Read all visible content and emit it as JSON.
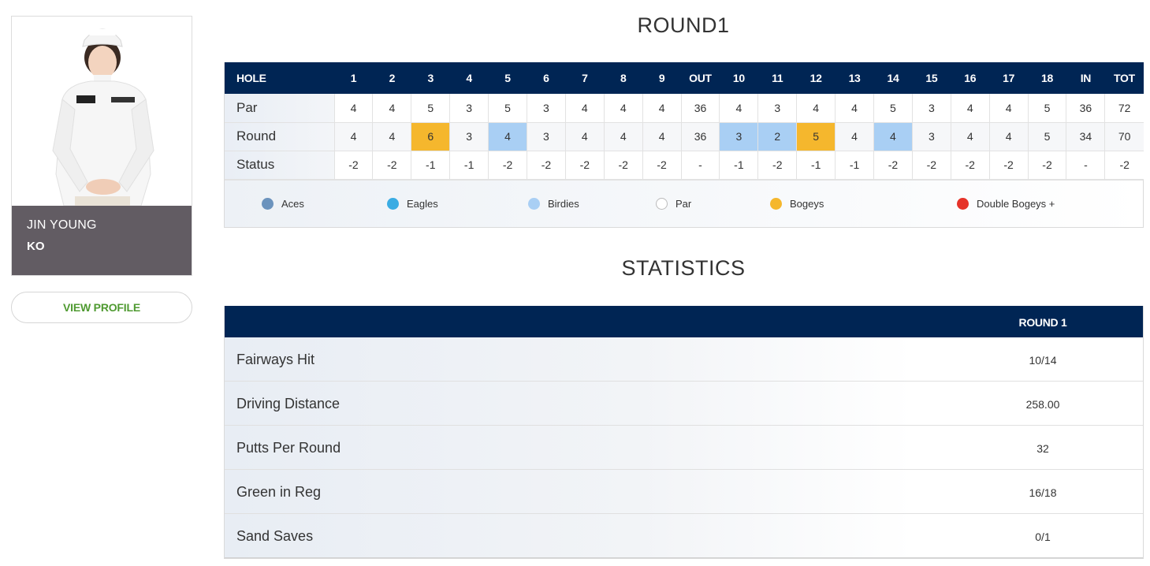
{
  "player": {
    "first_name": "JIN YOUNG",
    "last_name": "KO",
    "view_profile_label": "VIEW PROFILE"
  },
  "round_title": "ROUND1",
  "stats_title": "STATISTICS",
  "scorecard": {
    "header_label": "HOLE",
    "columns": [
      "1",
      "2",
      "3",
      "4",
      "5",
      "6",
      "7",
      "8",
      "9",
      "OUT",
      "10",
      "11",
      "12",
      "13",
      "14",
      "15",
      "16",
      "17",
      "18",
      "IN",
      "TOT"
    ],
    "rows": [
      {
        "label": "Par",
        "values": [
          "4",
          "4",
          "5",
          "3",
          "5",
          "3",
          "4",
          "4",
          "4",
          "36",
          "4",
          "3",
          "4",
          "4",
          "5",
          "3",
          "4",
          "4",
          "5",
          "36",
          "72"
        ],
        "types": [
          "",
          "",
          "",
          "",
          "",
          "",
          "",
          "",
          "",
          "",
          "",
          "",
          "",
          "",
          "",
          "",
          "",
          "",
          "",
          "",
          ""
        ]
      },
      {
        "label": "Round",
        "values": [
          "4",
          "4",
          "6",
          "3",
          "4",
          "3",
          "4",
          "4",
          "4",
          "36",
          "3",
          "2",
          "5",
          "4",
          "4",
          "3",
          "4",
          "4",
          "5",
          "34",
          "70"
        ],
        "types": [
          "",
          "",
          "bogey",
          "",
          "birdie",
          "",
          "",
          "",
          "",
          "",
          "birdie",
          "birdie",
          "bogey",
          "",
          "birdie",
          "",
          "",
          "",
          "",
          "",
          ""
        ]
      },
      {
        "label": "Status",
        "values": [
          "-2",
          "-2",
          "-1",
          "-1",
          "-2",
          "-2",
          "-2",
          "-2",
          "-2",
          "-",
          "-1",
          "-2",
          "-1",
          "-1",
          "-2",
          "-2",
          "-2",
          "-2",
          "-2",
          "-",
          "-2"
        ],
        "types": [
          "",
          "",
          "",
          "",
          "",
          "",
          "",
          "",
          "",
          "",
          "",
          "",
          "",
          "",
          "",
          "",
          "",
          "",
          "",
          "",
          ""
        ]
      }
    ]
  },
  "legend": [
    {
      "label": "Aces",
      "color": "#6b93bd"
    },
    {
      "label": "Eagles",
      "color": "#3aace3"
    },
    {
      "label": "Birdies",
      "color": "#a9cff4"
    },
    {
      "label": "Par",
      "color": "#ffffff"
    },
    {
      "label": "Bogeys",
      "color": "#f5b72d"
    },
    {
      "label": "Double Bogeys +",
      "color": "#e63329"
    }
  ],
  "statistics": {
    "column_label": "ROUND 1",
    "rows": [
      {
        "label": "Fairways Hit",
        "value": "10/14"
      },
      {
        "label": "Driving Distance",
        "value": "258.00"
      },
      {
        "label": "Putts Per Round",
        "value": "32"
      },
      {
        "label": "Green in Reg",
        "value": "16/18"
      },
      {
        "label": "Sand Saves",
        "value": "0/1"
      }
    ]
  },
  "colors": {
    "header_navy": "#002554",
    "name_box": "#625c63",
    "profile_link_green": "#4f9a31"
  }
}
